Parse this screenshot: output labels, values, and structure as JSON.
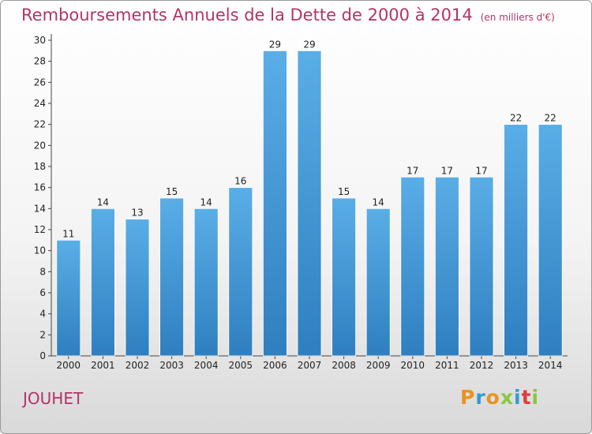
{
  "chart_data": {
    "type": "bar",
    "title": "Remboursements Annuels de la Dette de 2000 à 2014",
    "subtitle": "(en milliers d'€)",
    "categories": [
      "2000",
      "2001",
      "2002",
      "2003",
      "2004",
      "2005",
      "2006",
      "2007",
      "2008",
      "2009",
      "2010",
      "2011",
      "2012",
      "2013",
      "2014"
    ],
    "values": [
      11,
      14,
      13,
      15,
      14,
      16,
      29,
      29,
      15,
      14,
      17,
      17,
      17,
      22,
      22
    ],
    "ylim": [
      0,
      30
    ],
    "yticks": [
      0,
      2,
      4,
      6,
      8,
      10,
      12,
      14,
      16,
      18,
      20,
      22,
      24,
      26,
      28,
      30
    ],
    "grid": false,
    "bar_color": "#3d94d6"
  },
  "footer": {
    "city": "JOUHET",
    "logo": "Proxiti",
    "logo_colors": [
      "#e8931e",
      "#2f9bd6",
      "#e8931e",
      "#8cc63e",
      "#2f9bd6",
      "#e33b3b",
      "#8cc63e"
    ]
  }
}
